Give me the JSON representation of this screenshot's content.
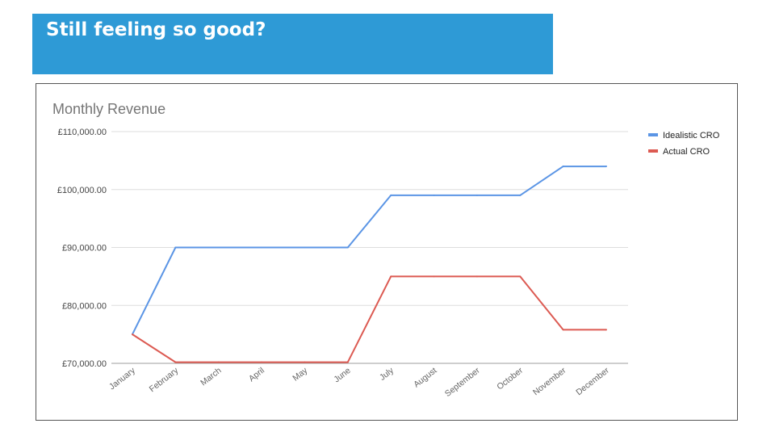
{
  "slide": {
    "title": "Still feeling so good?",
    "header_color": "#2e9ad6"
  },
  "chart_data": {
    "type": "line",
    "title": "Monthly Revenue",
    "xlabel": "",
    "ylabel": "",
    "categories": [
      "January",
      "February",
      "March",
      "April",
      "May",
      "June",
      "July",
      "August",
      "September",
      "October",
      "November",
      "December"
    ],
    "series": [
      {
        "name": "Idealistic CRO",
        "color": "#5b95e5",
        "values": [
          75000,
          90000,
          90000,
          90000,
          90000,
          90000,
          99000,
          99000,
          99000,
          99000,
          104000,
          104000
        ]
      },
      {
        "name": "Actual CRO",
        "color": "#dc5a52",
        "values": [
          75000,
          70200,
          70200,
          70200,
          70200,
          70200,
          85000,
          85000,
          85000,
          85000,
          75800,
          75800
        ]
      }
    ],
    "ylim": [
      70000,
      110000
    ],
    "yticks": [
      70000,
      80000,
      90000,
      100000,
      110000
    ],
    "ytick_labels": [
      "£70,000.00",
      "£80,000.00",
      "£90,000.00",
      "£100,000.00",
      "£110,000.00"
    ],
    "grid": true,
    "legend_position": "right"
  }
}
